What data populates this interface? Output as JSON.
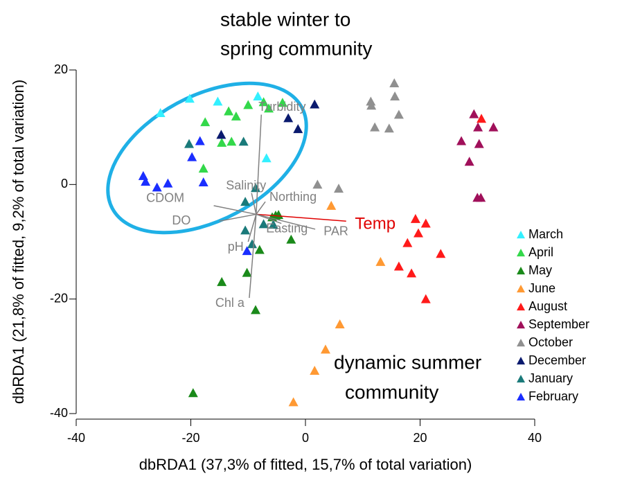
{
  "chart_data": {
    "type": "scatter",
    "xlabel": "dbRDA1 (37,3% of fitted, 15,7% of total variation)",
    "ylabel": "dbRDA1 (21,8% of fitted, 9,2% of total variation)",
    "xlim": [
      -40,
      40
    ],
    "xticks": [
      -40,
      -20,
      0,
      20,
      40
    ],
    "ylim": [
      -40,
      20
    ],
    "yticks": [
      -40,
      -20,
      0,
      20
    ],
    "annotations": [
      "stable winter to",
      "spring community",
      "dynamic summer",
      "community"
    ],
    "series": [
      {
        "name": "March",
        "color": "#33f0ff",
        "x": [
          -25.3,
          -20.2,
          -15.3,
          -8.3,
          -6.8
        ],
        "values": [
          12.5,
          15.0,
          14.5,
          15.4,
          4.6
        ]
      },
      {
        "name": "April",
        "color": "#33d84a",
        "x": [
          -17.5,
          -13.4,
          -12.1,
          -10.0,
          -7.3,
          -6.4,
          -4.0,
          -17.8,
          -14.6,
          -12.9
        ],
        "values": [
          10.9,
          12.8,
          11.9,
          13.9,
          14.4,
          13.3,
          14.3,
          2.8,
          7.3,
          7.5
        ]
      },
      {
        "name": "May",
        "color": "#1a8a1a",
        "x": [
          -19.6,
          -14.6,
          -10.2,
          -8.7,
          -8.0,
          -2.5,
          -5.2,
          -4.7,
          -5.8
        ],
        "values": [
          -36.4,
          -17.0,
          -15.4,
          -21.9,
          -11.4,
          -9.6,
          -5.4,
          -5.3,
          -5.7
        ]
      },
      {
        "name": "June",
        "color": "#ff9933",
        "x": [
          4.5,
          13.1,
          6.0,
          3.5,
          1.6,
          -2.1
        ],
        "values": [
          -3.7,
          -13.5,
          -24.4,
          -28.8,
          -32.5,
          -38.0
        ]
      },
      {
        "name": "August",
        "color": "#ff1a1a",
        "x": [
          30.7,
          19.2,
          21.0,
          19.7,
          17.8,
          23.6,
          16.3,
          18.5,
          21.0
        ],
        "values": [
          11.5,
          -6.0,
          -6.8,
          -8.5,
          -10.2,
          -12.1,
          -14.3,
          -15.5,
          -20.0
        ]
      },
      {
        "name": "September",
        "color": "#a0105a",
        "x": [
          29.4,
          32.8,
          30.1,
          30.3,
          27.2,
          28.6,
          30.0,
          30.6
        ],
        "values": [
          12.3,
          10.0,
          10.0,
          7.1,
          7.6,
          4.0,
          -2.3,
          -2.3
        ]
      },
      {
        "name": "October",
        "color": "#909090",
        "x": [
          15.5,
          15.6,
          16.3,
          11.4,
          11.5,
          12.1,
          14.6,
          2.1,
          5.8
        ],
        "values": [
          17.7,
          15.4,
          12.2,
          14.5,
          13.8,
          10.0,
          9.8,
          0,
          -0.7
        ]
      },
      {
        "name": "December",
        "color": "#0a1a6e",
        "x": [
          1.6,
          -3.0,
          -1.3,
          -14.7
        ],
        "values": [
          14.0,
          11.6,
          9.7,
          8.7
        ]
      },
      {
        "name": "January",
        "color": "#1a7a7a",
        "x": [
          -20.3,
          -10.8,
          -8.7,
          -10.5,
          -10.5,
          -7.3,
          -5.6,
          -9.3
        ],
        "values": [
          7.1,
          7.5,
          -0.6,
          -3.0,
          -8.0,
          -6.9,
          -7.0,
          -10.4
        ]
      },
      {
        "name": "February",
        "color": "#1a2eff",
        "x": [
          -28.3,
          -27.9,
          -25.9,
          -24.0,
          -19.8,
          -18.4,
          -17.8,
          -10.2
        ],
        "values": [
          1.5,
          0.5,
          -0.5,
          0.2,
          4.8,
          7.6,
          0.4,
          -11.6
        ]
      }
    ],
    "vector_origin": {
      "x": -8.6,
      "y": -5.2
    },
    "vectors": [
      {
        "label": "Turbidity",
        "x": -7.7,
        "y": 12.2,
        "color": "#808080"
      },
      {
        "label": "Salinity",
        "x": -9.4,
        "y": -1.5,
        "color": "#808080"
      },
      {
        "label": "Northing",
        "x": -7.0,
        "y": -3.0,
        "color": "#808080"
      },
      {
        "label": "CDOM",
        "x": -16.0,
        "y": -3.7,
        "color": "#808080"
      },
      {
        "label": "DO",
        "x": -15.0,
        "y": -6.4,
        "color": "#808080"
      },
      {
        "label": "Temp",
        "x": 7.1,
        "y": -6.4,
        "color": "#e00000"
      },
      {
        "label": "PAR",
        "x": 1.7,
        "y": -7.8,
        "color": "#808080"
      },
      {
        "label": "Easting",
        "x": -4.2,
        "y": -6.8,
        "color": "#808080"
      },
      {
        "label": "pH",
        "x": -10.0,
        "y": -10.0,
        "color": "#808080"
      },
      {
        "label": "Chl a",
        "x": -9.8,
        "y": -19.8,
        "color": "#808080"
      }
    ]
  }
}
